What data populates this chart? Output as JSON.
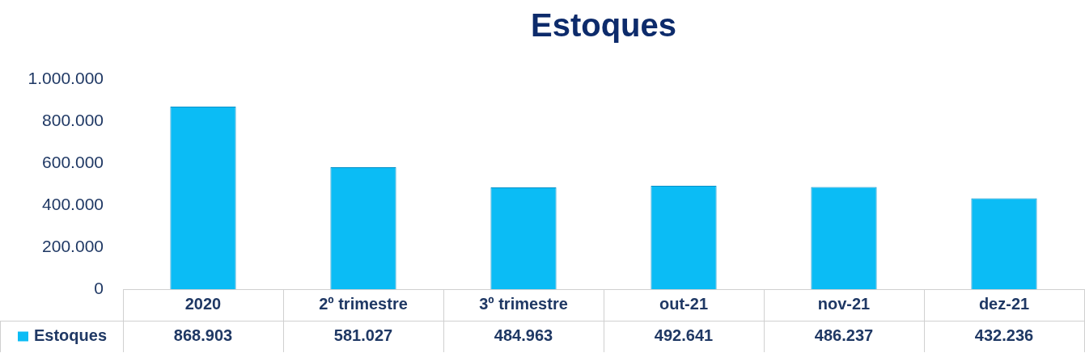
{
  "chart_data": {
    "type": "bar",
    "title": "Estoques",
    "categories": [
      "2020",
      "2º trimestre",
      "3º trimestre",
      "out-21",
      "nov-21",
      "dez-21"
    ],
    "series": [
      {
        "name": "Estoques",
        "color": "#0bbcf5",
        "values": [
          868903,
          581027,
          484963,
          492641,
          486237,
          432236
        ],
        "value_labels": [
          "868.903",
          "581.027",
          "484.963",
          "492.641",
          "486.237",
          "432.236"
        ]
      }
    ],
    "ylim": [
      0,
      1000000
    ],
    "yticks": [
      {
        "value": 0,
        "label": "0"
      },
      {
        "value": 200000,
        "label": "200.000"
      },
      {
        "value": 400000,
        "label": "400.000"
      },
      {
        "value": 600000,
        "label": "600.000"
      },
      {
        "value": 800000,
        "label": "800.000"
      },
      {
        "value": 1000000,
        "label": "1.000.000"
      }
    ],
    "grid": false,
    "legend": "bottom left"
  }
}
